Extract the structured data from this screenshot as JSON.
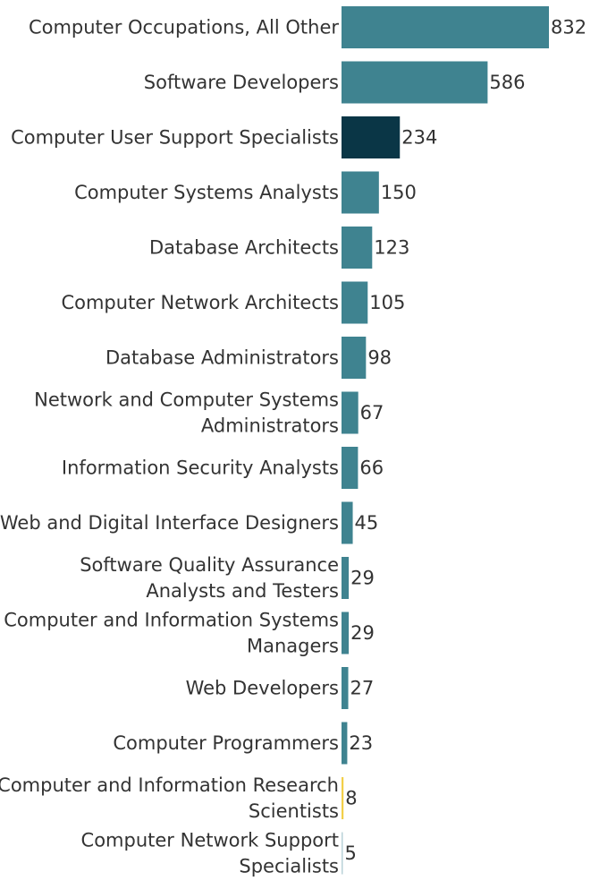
{
  "chart_data": {
    "type": "bar",
    "orientation": "horizontal",
    "title": "",
    "xlabel": "",
    "ylabel": "",
    "xlim": [
      0,
      832
    ],
    "grid": false,
    "legend": "none",
    "colors": {
      "default": "#3f8390",
      "highlight": "#0a3646",
      "yellow": "#f2cf49",
      "light": "#b9d2d8"
    },
    "categories": [
      "Computer Occupations, All Other",
      "Software Developers",
      "Computer User Support Specialists",
      "Computer Systems Analysts",
      "Database Architects",
      "Computer Network Architects",
      "Database Administrators",
      "Network and Computer Systems Administrators",
      "Information Security Analysts",
      "Web and Digital Interface Designers",
      "Software Quality Assurance Analysts and Testers",
      "Computer and Information Systems Managers",
      "Web Developers",
      "Computer Programmers",
      "Computer and Information Research Scientists",
      "Computer Network Support Specialists"
    ],
    "label_lines": [
      [
        "Computer Occupations, All Other"
      ],
      [
        "Software Developers"
      ],
      [
        "Computer User Support Specialists"
      ],
      [
        "Computer Systems Analysts"
      ],
      [
        "Database Architects"
      ],
      [
        "Computer Network Architects"
      ],
      [
        "Database Administrators"
      ],
      [
        "Network and Computer Systems",
        "Administrators"
      ],
      [
        "Information Security Analysts"
      ],
      [
        "Web and Digital Interface Designers"
      ],
      [
        "Software Quality Assurance",
        "Analysts and Testers"
      ],
      [
        "Computer and Information Systems",
        "Managers"
      ],
      [
        "Web Developers"
      ],
      [
        "Computer Programmers"
      ],
      [
        "Computer and Information Research",
        "Scientists"
      ],
      [
        "Computer Network Support",
        "Specialists"
      ]
    ],
    "values": [
      832,
      586,
      234,
      150,
      123,
      105,
      98,
      67,
      66,
      45,
      29,
      29,
      27,
      23,
      8,
      5
    ],
    "bar_color_keys": [
      "default",
      "default",
      "highlight",
      "default",
      "default",
      "default",
      "default",
      "default",
      "default",
      "default",
      "default",
      "default",
      "default",
      "default",
      "yellow",
      "light"
    ]
  }
}
